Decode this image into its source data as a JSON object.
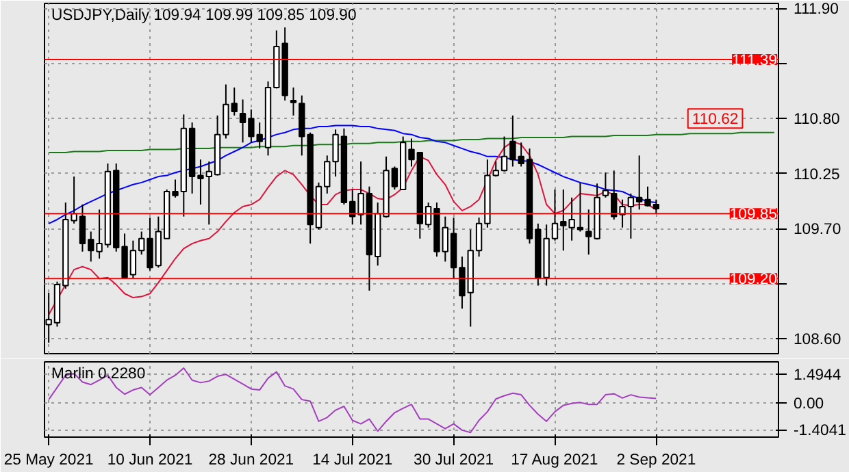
{
  "chart_data": [
    {
      "type": "candlestick",
      "title": "USDJPY,Daily  109.94 109.99 109.85 109.90",
      "categories": [
        null,
        null,
        null,
        null,
        null,
        null,
        null,
        null,
        null,
        null,
        null,
        null,
        null,
        null,
        null,
        null,
        null,
        null,
        null,
        null,
        null,
        null,
        null,
        null,
        null,
        null,
        null,
        null,
        null,
        null,
        null,
        null,
        null,
        null,
        null,
        null,
        null,
        null,
        null,
        null,
        null,
        null,
        null,
        null,
        null,
        null,
        null,
        null,
        null,
        null,
        null,
        null,
        null,
        null,
        null,
        null,
        null,
        null,
        null,
        null,
        null,
        null,
        null,
        null,
        null,
        null,
        null,
        null,
        null,
        null,
        null,
        null,
        null,
        null,
        null,
        null,
        null,
        null,
        null,
        null,
        null,
        null,
        null,
        null,
        null,
        null,
        null
      ],
      "ohlc": [
        [
          108.74,
          109.06,
          108.56,
          108.79
        ],
        [
          108.76,
          109.17,
          108.72,
          109.14
        ],
        [
          109.13,
          109.96,
          109.1,
          109.79
        ],
        [
          109.78,
          110.22,
          109.75,
          109.85
        ],
        [
          109.82,
          109.94,
          109.47,
          109.55
        ],
        [
          109.59,
          109.67,
          109.37,
          109.48
        ],
        [
          109.47,
          109.89,
          109.4,
          109.55
        ],
        [
          109.54,
          110.35,
          109.51,
          110.27
        ],
        [
          110.28,
          110.35,
          109.47,
          109.51
        ],
        [
          109.52,
          109.65,
          109.2,
          109.21
        ],
        [
          109.24,
          109.58,
          109.2,
          109.48
        ],
        [
          109.48,
          109.67,
          109.44,
          109.6
        ],
        [
          109.6,
          109.81,
          109.28,
          109.31
        ],
        [
          109.33,
          109.82,
          109.31,
          109.67
        ],
        [
          109.6,
          110.09,
          109.6,
          110.07
        ],
        [
          110.07,
          110.19,
          110.01,
          110.03
        ],
        [
          110.07,
          110.84,
          109.82,
          110.7
        ],
        [
          110.7,
          110.76,
          110.05,
          110.22
        ],
        [
          110.23,
          110.39,
          109.94,
          110.2
        ],
        [
          110.22,
          110.37,
          109.74,
          110.27
        ],
        [
          110.24,
          110.83,
          110.23,
          110.64
        ],
        [
          110.64,
          111.14,
          110.6,
          110.94
        ],
        [
          110.95,
          111.11,
          110.83,
          110.87
        ],
        [
          110.85,
          110.99,
          110.56,
          110.76
        ],
        [
          110.8,
          110.89,
          110.56,
          110.62
        ],
        [
          110.64,
          110.76,
          110.5,
          110.57
        ],
        [
          110.51,
          111.17,
          110.43,
          111.11
        ],
        [
          111.11,
          111.68,
          111.1,
          111.52
        ],
        [
          111.55,
          111.71,
          110.98,
          111.03
        ],
        [
          110.98,
          111.11,
          110.83,
          110.96
        ],
        [
          110.95,
          111.03,
          110.43,
          110.62
        ],
        [
          110.64,
          110.66,
          109.55,
          109.74
        ],
        [
          109.71,
          110.16,
          109.69,
          110.12
        ],
        [
          110.12,
          110.43,
          110.05,
          110.37
        ],
        [
          110.37,
          110.69,
          110.22,
          110.64
        ],
        [
          110.62,
          110.7,
          109.94,
          109.96
        ],
        [
          109.97,
          110.09,
          109.74,
          109.82
        ],
        [
          109.84,
          110.37,
          109.74,
          110.05
        ],
        [
          110.05,
          110.12,
          109.08,
          109.44
        ],
        [
          109.42,
          109.96,
          109.33,
          109.85
        ],
        [
          109.82,
          110.42,
          109.81,
          110.28
        ],
        [
          110.3,
          110.32,
          110.09,
          110.12
        ],
        [
          110.09,
          110.62,
          110.09,
          110.56
        ],
        [
          110.49,
          110.6,
          110.32,
          110.39
        ],
        [
          110.46,
          110.46,
          109.6,
          109.75
        ],
        [
          109.74,
          109.96,
          109.71,
          109.92
        ],
        [
          109.9,
          109.96,
          109.42,
          109.47
        ],
        [
          109.47,
          109.82,
          109.37,
          109.71
        ],
        [
          109.65,
          109.81,
          109.2,
          109.31
        ],
        [
          109.31,
          109.42,
          108.9,
          109.03
        ],
        [
          109.06,
          109.69,
          108.72,
          109.48
        ],
        [
          109.48,
          109.81,
          109.42,
          109.75
        ],
        [
          109.75,
          110.39,
          109.71,
          110.23
        ],
        [
          110.23,
          110.37,
          110.22,
          110.28
        ],
        [
          110.28,
          110.62,
          110.27,
          110.42
        ],
        [
          110.57,
          110.83,
          110.32,
          110.39
        ],
        [
          110.42,
          110.56,
          110.32,
          110.35
        ],
        [
          110.39,
          110.5,
          109.55,
          109.6
        ],
        [
          109.69,
          109.75,
          109.13,
          109.21
        ],
        [
          109.21,
          109.74,
          109.13,
          109.6
        ],
        [
          109.6,
          110.09,
          109.58,
          109.75
        ],
        [
          109.77,
          110.09,
          109.48,
          109.73
        ],
        [
          109.71,
          110.01,
          109.58,
          109.79
        ],
        [
          109.71,
          110.16,
          109.67,
          109.69
        ],
        [
          109.67,
          109.89,
          109.44,
          109.62
        ],
        [
          109.6,
          110.15,
          109.59,
          110.01
        ],
        [
          110.03,
          110.26,
          110.01,
          110.08
        ],
        [
          110.05,
          110.28,
          109.79,
          109.82
        ],
        [
          109.84,
          109.99,
          109.71,
          109.92
        ],
        [
          109.92,
          110.05,
          109.6,
          110.01
        ],
        [
          110.01,
          110.43,
          109.89,
          109.97
        ],
        [
          109.99,
          110.12,
          109.92,
          109.93
        ],
        [
          109.94,
          109.99,
          109.85,
          109.9
        ],
        null,
        null,
        null,
        null,
        null,
        null,
        null,
        null,
        null,
        null,
        null,
        null,
        null,
        null
      ],
      "series": [
        {
          "type": "line",
          "color": "#1a7a1a",
          "values": [
            110.46,
            110.46,
            110.46,
            110.47,
            110.47,
            110.47,
            110.47,
            110.48,
            110.48,
            110.48,
            110.48,
            110.48,
            110.49,
            110.49,
            110.49,
            110.49,
            110.5,
            110.5,
            110.5,
            110.5,
            110.51,
            110.51,
            110.51,
            110.51,
            110.51,
            110.52,
            110.52,
            110.52,
            110.52,
            110.53,
            110.53,
            110.53,
            110.54,
            110.54,
            110.54,
            110.54,
            110.55,
            110.55,
            110.55,
            110.56,
            110.56,
            110.56,
            110.57,
            110.57,
            110.57,
            110.58,
            110.58,
            110.58,
            110.58,
            110.59,
            110.59,
            110.59,
            110.6,
            110.6,
            110.6,
            110.6,
            110.61,
            110.61,
            110.61,
            110.61,
            110.61,
            110.61,
            110.62,
            110.62,
            110.62,
            110.62,
            110.62,
            110.63,
            110.63,
            110.63,
            110.63,
            110.63,
            110.64,
            110.64,
            110.64,
            110.64,
            110.65,
            110.65,
            110.65,
            110.65,
            110.65,
            110.65,
            110.66,
            110.66,
            110.66,
            110.66,
            110.66
          ]
        },
        {
          "type": "line",
          "color": "#0000ff",
          "values": [
            109.75,
            109.79,
            109.84,
            109.88,
            109.93,
            109.97,
            110.01,
            110.05,
            110.08,
            110.11,
            110.14,
            110.16,
            110.19,
            110.22,
            110.23,
            110.26,
            110.28,
            110.3,
            110.32,
            110.35,
            110.38,
            110.43,
            110.47,
            110.51,
            110.56,
            110.58,
            110.61,
            110.64,
            110.66,
            110.69,
            110.7,
            110.7,
            110.72,
            110.72,
            110.73,
            110.73,
            110.73,
            110.72,
            110.72,
            110.7,
            110.69,
            110.68,
            110.65,
            110.64,
            110.61,
            110.6,
            110.57,
            110.56,
            110.53,
            110.5,
            110.47,
            110.45,
            110.42,
            110.42,
            110.41,
            110.39,
            110.38,
            110.37,
            110.34,
            110.3,
            110.26,
            110.22,
            110.19,
            110.16,
            110.14,
            110.12,
            110.09,
            110.08,
            110.07,
            110.03,
            110.0,
            109.97,
            109.96,
            null,
            null,
            null,
            null,
            null,
            null,
            null,
            null,
            null,
            null,
            null,
            null,
            null,
            null
          ]
        },
        {
          "type": "line",
          "color": "#dc143c",
          "values": [
            108.84,
            108.99,
            109.14,
            109.29,
            109.32,
            109.29,
            109.2,
            109.21,
            109.14,
            109.05,
            109.01,
            109.02,
            109.05,
            109.16,
            109.28,
            109.4,
            109.5,
            109.55,
            109.58,
            109.6,
            109.67,
            109.77,
            109.86,
            109.92,
            109.94,
            109.99,
            110.11,
            110.22,
            110.28,
            110.24,
            110.14,
            110.03,
            109.94,
            109.94,
            110.04,
            110.08,
            110.09,
            110.09,
            110.05,
            110.0,
            109.99,
            110.04,
            110.11,
            110.28,
            110.42,
            110.38,
            110.24,
            110.14,
            109.97,
            109.88,
            109.92,
            109.99,
            null,
            110.38,
            110.51,
            110.57,
            110.54,
            110.43,
            110.24,
            109.94,
            109.85,
            109.88,
            109.97,
            110.05,
            110.04,
            110.03,
            110.07,
            110.04,
            109.94,
            109.93,
            109.94,
            109.94,
            109.89,
            null,
            null,
            null,
            null,
            null,
            null,
            null,
            null,
            null,
            null,
            null,
            null,
            null,
            null
          ]
        }
      ],
      "ref_lines": [
        {
          "axis": "y",
          "value": 111.39,
          "label": "111.39",
          "color": "#ff0000"
        },
        {
          "axis": "y",
          "value": 109.85,
          "label": "109.85",
          "color": "#ff0000"
        },
        {
          "axis": "y",
          "value": 109.2,
          "label": "109.20",
          "color": "#ff0000"
        }
      ],
      "annotations": [
        "110.62"
      ],
      "ylim": [
        108.45,
        111.95
      ],
      "yticks": [
        {
          "value": 108.6,
          "label": "108.60"
        },
        {
          "value": 109.15,
          "label": null
        },
        {
          "value": 109.7,
          "label": "109.70"
        },
        110.25,
        {
          "value": 110.8,
          "label": "110.80"
        },
        {
          "value": 111.35,
          "label": null
        },
        {
          "value": 111.9,
          "label": "111.90"
        }
      ],
      "grid": true
    },
    {
      "type": "line",
      "title": "Marlin 0.2280",
      "categories": [
        "25 May 2021",
        null,
        null,
        null,
        null,
        null,
        null,
        null,
        null,
        null,
        null,
        null,
        "10 Jun 2021",
        null,
        null,
        null,
        null,
        null,
        null,
        null,
        null,
        null,
        null,
        null,
        "28 Jun 2021",
        null,
        null,
        null,
        null,
        null,
        null,
        null,
        null,
        null,
        null,
        null,
        "14 Jul 2021",
        null,
        null,
        null,
        null,
        null,
        null,
        null,
        null,
        null,
        null,
        null,
        "30 Jul 2021",
        null,
        null,
        null,
        null,
        null,
        null,
        null,
        null,
        null,
        null,
        null,
        "17 Aug 2021",
        null,
        null,
        null,
        null,
        null,
        null,
        null,
        null,
        null,
        null,
        null,
        "2 Sep 2021",
        null,
        null,
        null,
        null,
        null,
        null,
        null,
        null,
        null,
        null,
        null,
        null,
        null,
        null
      ],
      "series": [
        {
          "color": "#a33fbf",
          "values": [
            0.17,
            0.8,
            1.43,
            1.53,
            1.08,
            0.95,
            1.18,
            1.43,
            0.8,
            0.45,
            0.67,
            0.8,
            0.42,
            0.8,
            1.18,
            1.43,
            1.81,
            1.18,
            1.05,
            1.13,
            1.38,
            1.48,
            1.23,
            0.98,
            0.72,
            0.67,
            1.28,
            1.61,
            0.88,
            0.72,
            0.17,
            0.09,
            -0.96,
            -0.76,
            -0.38,
            -0.18,
            -0.91,
            -1.09,
            -0.84,
            -1.47,
            -0.96,
            -0.51,
            -0.28,
            -0.08,
            -0.84,
            -0.84,
            -1.09,
            -1.34,
            -1.09,
            -1.42,
            -1.54,
            -0.91,
            -0.46,
            0.2,
            0.37,
            0.5,
            0.42,
            -0.13,
            -0.59,
            -0.96,
            -0.46,
            -0.13,
            -0.03,
            0.02,
            -0.08,
            -0.08,
            0.42,
            0.47,
            0.25,
            0.42,
            0.3,
            0.26,
            0.23,
            null,
            null,
            null,
            null,
            null,
            null,
            null,
            null,
            null,
            null,
            null,
            null,
            null,
            null
          ]
        }
      ],
      "ylim": [
        -1.78,
        2.13
      ],
      "yticks": [
        1.4944,
        {
          "value": 0,
          "label": "0.00"
        },
        -1.4041
      ],
      "grid": true
    }
  ]
}
